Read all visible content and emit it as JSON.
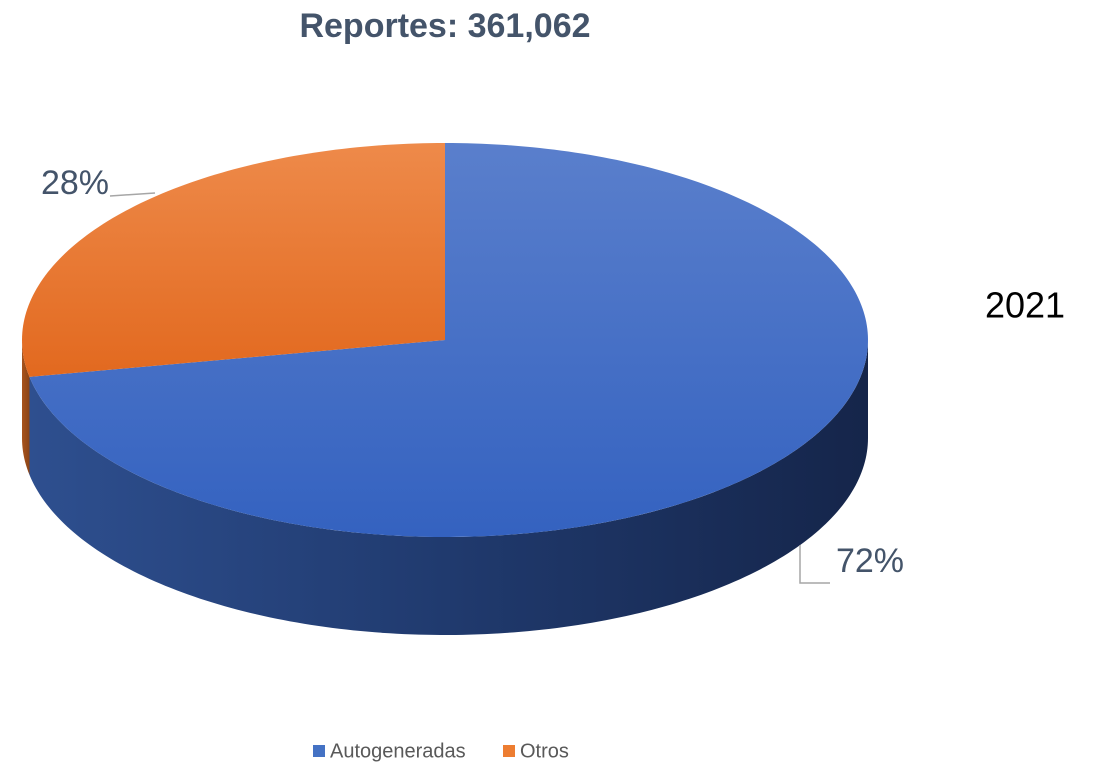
{
  "chart_data": {
    "type": "pie3d",
    "title": "Reportes:  361,062",
    "annotation": "2021",
    "categories": [
      "Autogeneradas",
      "Otros"
    ],
    "values": [
      72,
      28
    ],
    "value_labels": [
      "72%",
      "28%"
    ],
    "colors": [
      "#4472c4",
      "#ed7d31"
    ],
    "legend": "bottom"
  }
}
